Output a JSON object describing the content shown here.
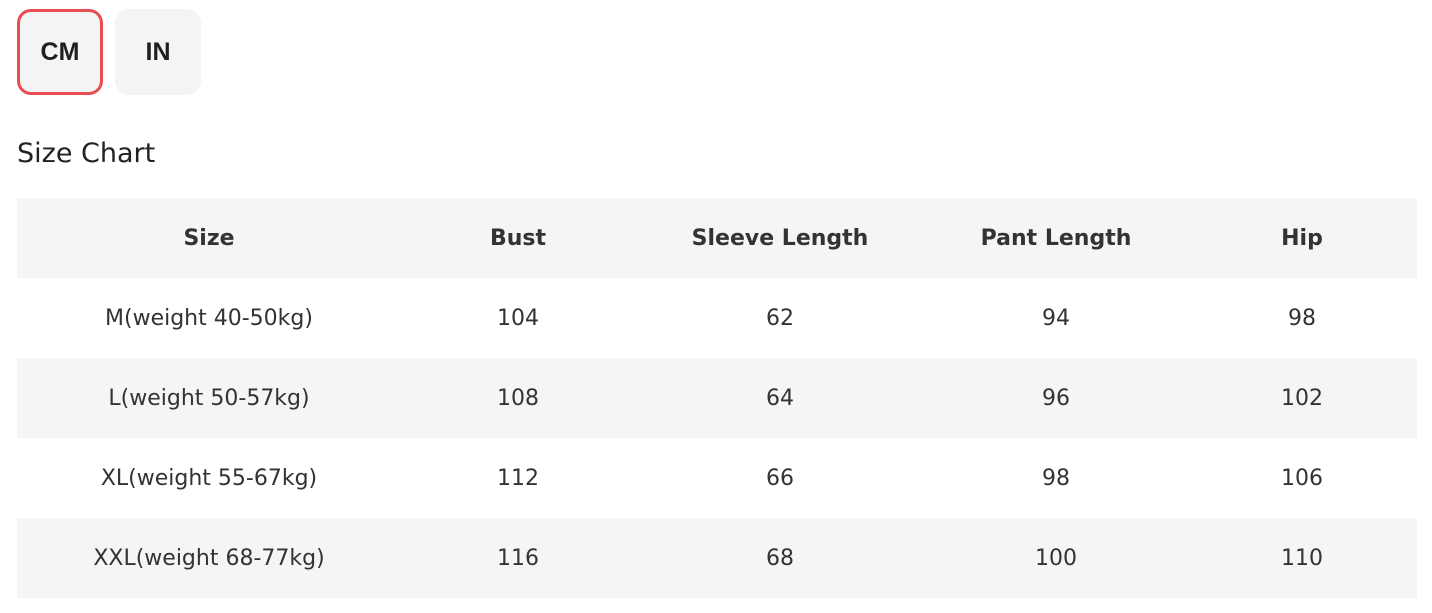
{
  "units": {
    "options": [
      "CM",
      "IN"
    ],
    "selected": "CM",
    "accent_color": "#ea4d4f"
  },
  "title": "Size Chart",
  "table": {
    "headers": [
      "Size",
      "Bust",
      "Sleeve Length",
      "Pant Length",
      "Hip"
    ],
    "rows": [
      [
        "M(weight 40-50kg)",
        "104",
        "62",
        "94",
        "98"
      ],
      [
        "L(weight 50-57kg)",
        "108",
        "64",
        "96",
        "102"
      ],
      [
        "XL(weight 55-67kg)",
        "112",
        "66",
        "98",
        "106"
      ],
      [
        "XXL(weight 68-77kg)",
        "116",
        "68",
        "100",
        "110"
      ]
    ]
  }
}
